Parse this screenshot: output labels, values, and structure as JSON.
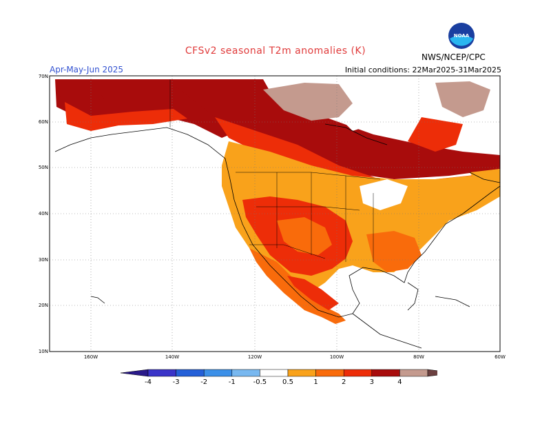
{
  "title": "CFSv2 seasonal T2m anomalies (K)",
  "season": "Apr-May-Jun 2025",
  "initial_conditions": "Initial conditions: 22Mar2025-31Mar2025",
  "agency": "NWS/NCEP/CPC",
  "logo_text": "NOAA",
  "lat_labels": [
    "70N",
    "60N",
    "50N",
    "40N",
    "30N",
    "20N",
    "10N"
  ],
  "lon_labels": [
    "160W",
    "140W",
    "120W",
    "100W",
    "80W",
    "60W"
  ],
  "colorbar": {
    "colors": [
      "#2a1a8a",
      "#3a34c8",
      "#2560d8",
      "#3c90e8",
      "#78b8f0",
      "#ffffff",
      "#f9a21b",
      "#f96b0b",
      "#ed2d08",
      "#a80c0c",
      "#c49a8e",
      "#6b4040"
    ],
    "labels": [
      "-4",
      "-3",
      "-2",
      "-1",
      "-0.5",
      "0.5",
      "1",
      "2",
      "3",
      "4"
    ]
  },
  "palette": {
    "warm1": "#f9a21b",
    "warm2": "#f96b0b",
    "warm3": "#ed2d08",
    "warm4": "#a80c0c",
    "warm5": "#c49a8e"
  }
}
